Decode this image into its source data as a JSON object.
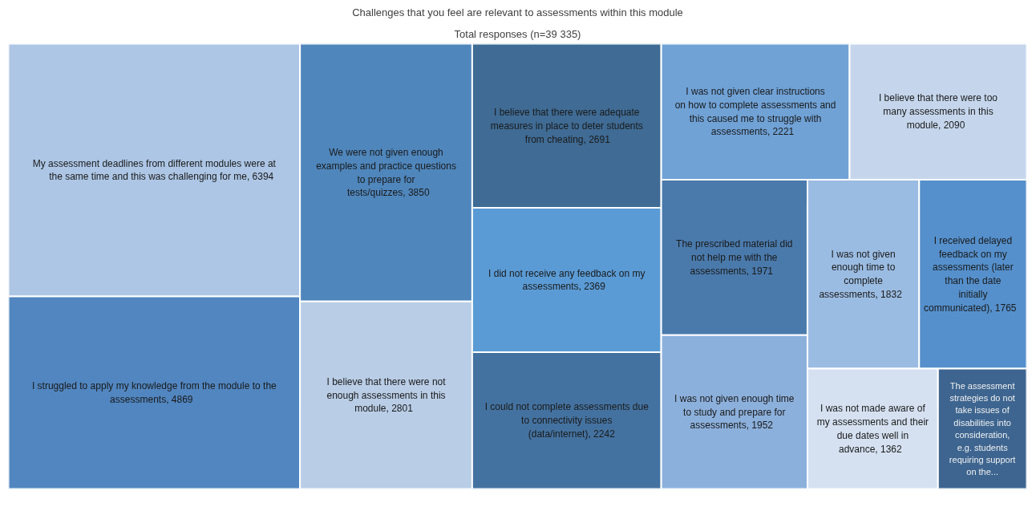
{
  "chart_data": {
    "type": "other",
    "title": "Challenges that you feel are relevant to assessments within this module",
    "subtitle": "Total responses (n=39 335)",
    "categories": [
      "My assessment deadlines from different modules were at the same time and this was challenging for me",
      "I struggled to apply my knowledge from the module to the assessments",
      "We were not given enough examples and practice questions to prepare for tests/quizzes",
      "I believe that there were not enough assessments in this module",
      "I believe that there were adequate measures in place to deter students from cheating",
      "I did not receive any feedback on my assessments",
      "I could not complete assessments due to connectivity issues (data/internet)",
      "I was not given clear instructions on how to complete assessments and this caused me to struggle with assessments",
      "I believe that there were too many assessments in this module",
      "The prescribed material did not help me with the assessments",
      "I was not given enough time to study and prepare for assessments",
      "I was not given enough time to complete assessments",
      "I received delayed feedback on my assessments (later than the date initially communicated)",
      "I was not made aware of my assessments and their due dates well in advance",
      "The assessment strategies do not take issues of disabilities into consideration, e.g. students requiring support on the..."
    ],
    "values": [
      6394,
      4869,
      3850,
      2801,
      2691,
      2369,
      2242,
      2221,
      2090,
      1971,
      1952,
      1832,
      1765,
      1362,
      null
    ],
    "value_labels": [
      ", 6394",
      ", 4869",
      ", 3850",
      ", 2801",
      ", 2691",
      ", 2369",
      ", 2242",
      ", 2221",
      ", 2090",
      ", 1971",
      ", 1952",
      ", 1832",
      ", 1765",
      ", 1362",
      null
    ],
    "colors": [
      "#adc6e5",
      "#5186c0",
      "#4f86bc",
      "#b9cde6",
      "#3f6b94",
      "#5b9bd5",
      "#4472a0",
      "#70a2d6",
      "#c5d6ec",
      "#4a7aac",
      "#8cb0dc",
      "#9bbce2",
      "#5590cc",
      "#d5e1f1",
      "#3d6590"
    ]
  }
}
